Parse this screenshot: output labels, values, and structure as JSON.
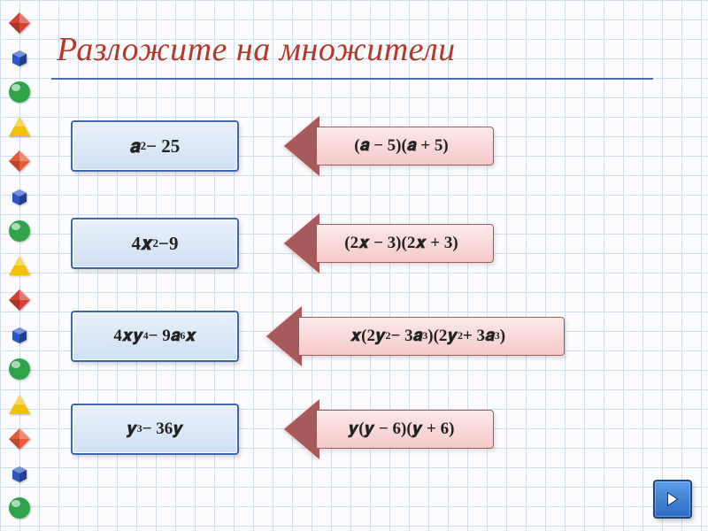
{
  "title": "Разложите на множители",
  "title_color": "#b33a2a",
  "title_fontsize": 38,
  "underline_color": "#4a6aa8",
  "grid_color": "#d0ddea",
  "grid_size": 22,
  "background_color": "#fcfcff",
  "blue_box": {
    "bg_top": "#e8f0fb",
    "bg_bottom": "#cfe0f4",
    "border": "#3e66aa",
    "text_color": "#222222",
    "fontsize": 21
  },
  "arrow_box": {
    "bg_top": "#fde8e8",
    "bg_bottom": "#f6caca",
    "border": "#a85a5a",
    "text_color": "#222222",
    "fontsize": 19
  },
  "rows": [
    {
      "left_html": "𝒂<sup>2</sup> − 25",
      "right_html": "(𝒂 − 5)(𝒂 + 5)"
    },
    {
      "left_html": "4𝒙<sup>2</sup> −9",
      "right_html": "(2𝒙 − 3)(2𝒙 + 3)"
    },
    {
      "left_html": "4𝒙𝒚<sup>4</sup> − 9𝒂<sup>6</sup>𝒙",
      "right_html": "𝒙(2𝒚<sup>2</sup> − 3𝒂<sup>3</sup>)(2𝒚<sup>2</sup> + 3𝒂<sup>3</sup>)"
    },
    {
      "left_html": "𝒚<sup>3</sup> − 36𝒚",
      "right_html": "𝒚(𝒚 − 6)(𝒚 + 6)"
    }
  ],
  "shapes": [
    {
      "name": "diamond",
      "color": "#d54233"
    },
    {
      "name": "cube",
      "color": "#2d55c4"
    },
    {
      "name": "circle",
      "color": "#2fa34a"
    },
    {
      "name": "triangle",
      "color": "#f2c200"
    },
    {
      "name": "diamond",
      "color": "#e85a3a"
    },
    {
      "name": "cube",
      "color": "#2d55c4"
    },
    {
      "name": "circle",
      "color": "#2fa34a"
    },
    {
      "name": "triangle",
      "color": "#f2c200"
    },
    {
      "name": "diamond",
      "color": "#d54233"
    },
    {
      "name": "cube",
      "color": "#2d55c4"
    },
    {
      "name": "circle",
      "color": "#2fa34a"
    },
    {
      "name": "triangle",
      "color": "#f2c200"
    },
    {
      "name": "diamond",
      "color": "#e85a3a"
    },
    {
      "name": "cube",
      "color": "#2d55c4"
    },
    {
      "name": "circle",
      "color": "#2fa34a"
    }
  ],
  "nav_button": {
    "bg_top": "#5a9de8",
    "bg_bottom": "#2d6bc3",
    "border": "#1c477f",
    "arrow_color": "#ffffff"
  }
}
